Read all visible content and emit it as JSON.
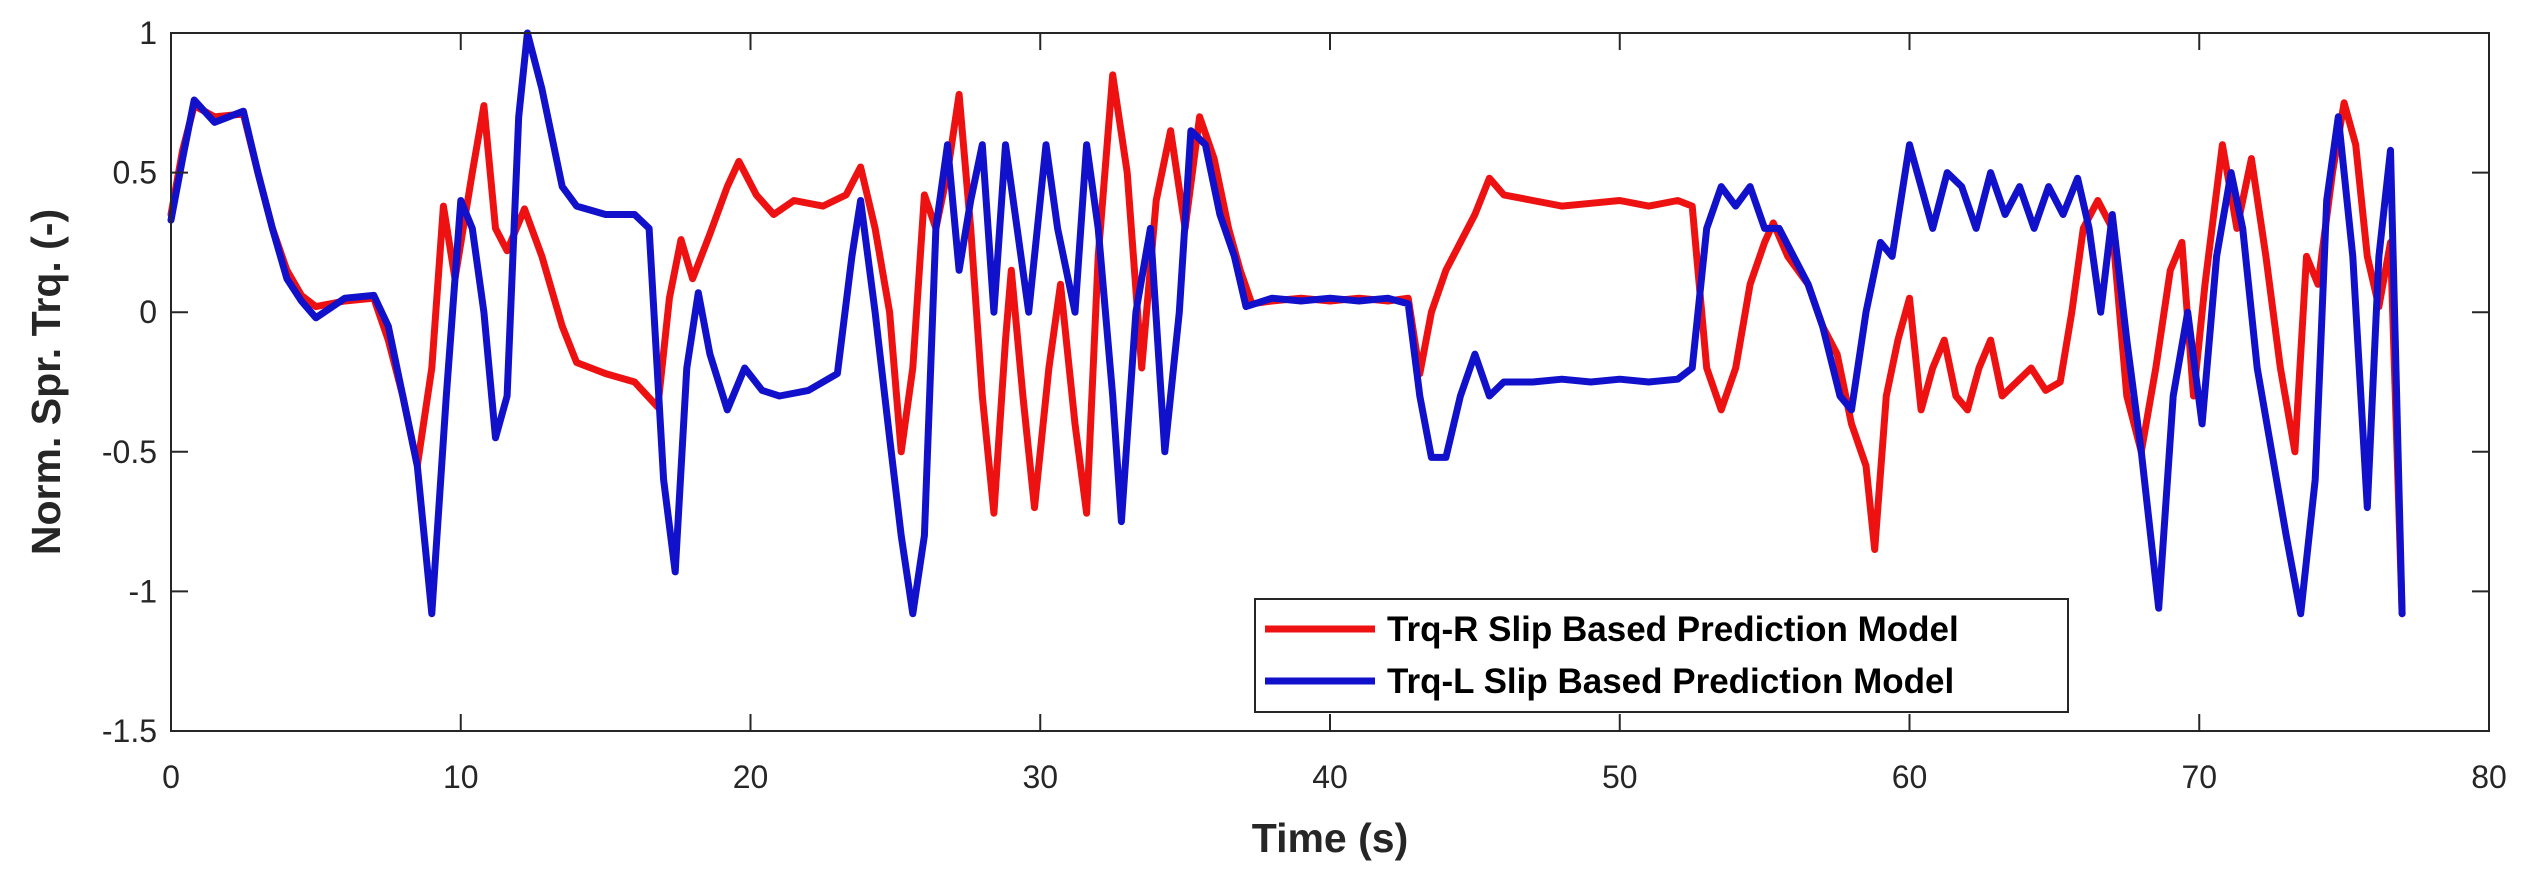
{
  "chart_data": {
    "type": "line",
    "title": "",
    "xlabel": "Time (s)",
    "ylabel": "Norm. Spr. Trq. (-)",
    "xlim": [
      0,
      80
    ],
    "ylim": [
      -1.5,
      1
    ],
    "xticks": [
      0,
      10,
      20,
      30,
      40,
      50,
      60,
      70,
      80
    ],
    "yticks": [
      -1.5,
      -1,
      -0.5,
      0,
      0.5,
      1
    ],
    "xtick_labels": [
      "0",
      "10",
      "20",
      "30",
      "40",
      "50",
      "60",
      "70",
      "80"
    ],
    "ytick_labels": [
      "-1.5",
      "-1",
      "-0.5",
      "0",
      "0.5",
      "1"
    ],
    "grid": false,
    "legend_position": "bottom-center-right",
    "series": [
      {
        "name": "Trq-R Slip Based Prediction Model",
        "color": "#ee1111",
        "points": [
          [
            0,
            0.35
          ],
          [
            0.4,
            0.58
          ],
          [
            0.8,
            0.74
          ],
          [
            1.5,
            0.7
          ],
          [
            2.5,
            0.71
          ],
          [
            3,
            0.5
          ],
          [
            3.5,
            0.3
          ],
          [
            4,
            0.15
          ],
          [
            4.5,
            0.06
          ],
          [
            5,
            0.02
          ],
          [
            6,
            0.04
          ],
          [
            7,
            0.05
          ],
          [
            7.5,
            -0.1
          ],
          [
            8,
            -0.3
          ],
          [
            8.5,
            -0.55
          ],
          [
            9,
            -0.2
          ],
          [
            9.4,
            0.38
          ],
          [
            9.8,
            0.12
          ],
          [
            10.4,
            0.5
          ],
          [
            10.8,
            0.74
          ],
          [
            11.2,
            0.3
          ],
          [
            11.6,
            0.22
          ],
          [
            12.2,
            0.37
          ],
          [
            12.8,
            0.2
          ],
          [
            13.5,
            -0.05
          ],
          [
            14,
            -0.18
          ],
          [
            15,
            -0.22
          ],
          [
            16,
            -0.25
          ],
          [
            16.8,
            -0.34
          ],
          [
            17.2,
            0.05
          ],
          [
            17.6,
            0.26
          ],
          [
            18,
            0.12
          ],
          [
            18.6,
            0.28
          ],
          [
            19.2,
            0.45
          ],
          [
            19.6,
            0.54
          ],
          [
            20.2,
            0.42
          ],
          [
            20.8,
            0.35
          ],
          [
            21.5,
            0.4
          ],
          [
            22.5,
            0.38
          ],
          [
            23.3,
            0.42
          ],
          [
            23.8,
            0.52
          ],
          [
            24.3,
            0.3
          ],
          [
            24.8,
            0.0
          ],
          [
            25.2,
            -0.5
          ],
          [
            25.6,
            -0.2
          ],
          [
            26,
            0.42
          ],
          [
            26.4,
            0.3
          ],
          [
            26.8,
            0.5
          ],
          [
            27.2,
            0.78
          ],
          [
            27.6,
            0.3
          ],
          [
            28,
            -0.3
          ],
          [
            28.4,
            -0.72
          ],
          [
            28.8,
            -0.1
          ],
          [
            29,
            0.15
          ],
          [
            29.4,
            -0.3
          ],
          [
            29.8,
            -0.7
          ],
          [
            30.3,
            -0.2
          ],
          [
            30.7,
            0.1
          ],
          [
            31.2,
            -0.4
          ],
          [
            31.6,
            -0.72
          ],
          [
            32,
            0.2
          ],
          [
            32.5,
            0.85
          ],
          [
            33,
            0.5
          ],
          [
            33.5,
            -0.2
          ],
          [
            34,
            0.4
          ],
          [
            34.5,
            0.65
          ],
          [
            35,
            0.3
          ],
          [
            35.5,
            0.7
          ],
          [
            36,
            0.55
          ],
          [
            36.5,
            0.3
          ],
          [
            36.9,
            0.15
          ],
          [
            37.3,
            0.03
          ],
          [
            38,
            0.04
          ],
          [
            39,
            0.05
          ],
          [
            40,
            0.04
          ],
          [
            41,
            0.05
          ],
          [
            42,
            0.04
          ],
          [
            42.7,
            0.05
          ],
          [
            43.1,
            -0.22
          ],
          [
            43.5,
            0.0
          ],
          [
            44,
            0.15
          ],
          [
            44.5,
            0.25
          ],
          [
            45,
            0.35
          ],
          [
            45.5,
            0.48
          ],
          [
            46,
            0.42
          ],
          [
            47,
            0.4
          ],
          [
            48,
            0.38
          ],
          [
            49,
            0.39
          ],
          [
            50,
            0.4
          ],
          [
            51,
            0.38
          ],
          [
            52,
            0.4
          ],
          [
            52.5,
            0.38
          ],
          [
            53,
            -0.2
          ],
          [
            53.5,
            -0.35
          ],
          [
            54,
            -0.2
          ],
          [
            54.5,
            0.1
          ],
          [
            55,
            0.25
          ],
          [
            55.3,
            0.32
          ],
          [
            55.8,
            0.2
          ],
          [
            56.5,
            0.1
          ],
          [
            57,
            -0.05
          ],
          [
            57.5,
            -0.15
          ],
          [
            58,
            -0.4
          ],
          [
            58.5,
            -0.55
          ],
          [
            58.8,
            -0.85
          ],
          [
            59.2,
            -0.3
          ],
          [
            59.6,
            -0.1
          ],
          [
            60,
            0.05
          ],
          [
            60.4,
            -0.35
          ],
          [
            60.8,
            -0.2
          ],
          [
            61.2,
            -0.1
          ],
          [
            61.6,
            -0.3
          ],
          [
            62,
            -0.35
          ],
          [
            62.4,
            -0.2
          ],
          [
            62.8,
            -0.1
          ],
          [
            63.2,
            -0.3
          ],
          [
            63.7,
            -0.25
          ],
          [
            64.2,
            -0.2
          ],
          [
            64.7,
            -0.28
          ],
          [
            65.2,
            -0.25
          ],
          [
            65.6,
            0.0
          ],
          [
            66,
            0.3
          ],
          [
            66.5,
            0.4
          ],
          [
            67,
            0.3
          ],
          [
            67.5,
            -0.3
          ],
          [
            68,
            -0.5
          ],
          [
            68.5,
            -0.2
          ],
          [
            69,
            0.15
          ],
          [
            69.4,
            0.25
          ],
          [
            69.8,
            -0.3
          ],
          [
            70.2,
            0.1
          ],
          [
            70.8,
            0.6
          ],
          [
            71.3,
            0.3
          ],
          [
            71.8,
            0.55
          ],
          [
            72.3,
            0.2
          ],
          [
            72.8,
            -0.2
          ],
          [
            73.3,
            -0.5
          ],
          [
            73.7,
            0.2
          ],
          [
            74.1,
            0.1
          ],
          [
            74.6,
            0.5
          ],
          [
            75,
            0.75
          ],
          [
            75.4,
            0.6
          ],
          [
            75.8,
            0.2
          ],
          [
            76.2,
            0.02
          ],
          [
            76.6,
            0.25
          ],
          [
            77,
            -1.08
          ]
        ]
      },
      {
        "name": "Trq-L Slip Based Prediction Model",
        "color": "#1111cc",
        "points": [
          [
            0,
            0.33
          ],
          [
            0.4,
            0.55
          ],
          [
            0.8,
            0.76
          ],
          [
            1.5,
            0.68
          ],
          [
            2.5,
            0.72
          ],
          [
            3,
            0.5
          ],
          [
            3.5,
            0.3
          ],
          [
            4,
            0.12
          ],
          [
            4.5,
            0.04
          ],
          [
            5,
            -0.02
          ],
          [
            6,
            0.05
          ],
          [
            7,
            0.06
          ],
          [
            7.5,
            -0.05
          ],
          [
            8,
            -0.3
          ],
          [
            8.5,
            -0.55
          ],
          [
            9,
            -1.08
          ],
          [
            9.5,
            -0.3
          ],
          [
            10,
            0.4
          ],
          [
            10.4,
            0.3
          ],
          [
            10.8,
            0.0
          ],
          [
            11.2,
            -0.45
          ],
          [
            11.6,
            -0.3
          ],
          [
            12.0,
            0.7
          ],
          [
            12.3,
            1.0
          ],
          [
            12.8,
            0.8
          ],
          [
            13.5,
            0.45
          ],
          [
            14,
            0.38
          ],
          [
            15,
            0.35
          ],
          [
            16,
            0.35
          ],
          [
            16.5,
            0.3
          ],
          [
            17,
            -0.6
          ],
          [
            17.4,
            -0.93
          ],
          [
            17.8,
            -0.2
          ],
          [
            18.2,
            0.07
          ],
          [
            18.6,
            -0.15
          ],
          [
            19.2,
            -0.35
          ],
          [
            19.8,
            -0.2
          ],
          [
            20.4,
            -0.28
          ],
          [
            21,
            -0.3
          ],
          [
            22,
            -0.28
          ],
          [
            23,
            -0.22
          ],
          [
            23.5,
            0.2
          ],
          [
            23.8,
            0.4
          ],
          [
            24.3,
            0.0
          ],
          [
            24.8,
            -0.45
          ],
          [
            25.2,
            -0.8
          ],
          [
            25.6,
            -1.08
          ],
          [
            26,
            -0.8
          ],
          [
            26.4,
            0.3
          ],
          [
            26.8,
            0.6
          ],
          [
            27.2,
            0.15
          ],
          [
            27.6,
            0.4
          ],
          [
            28,
            0.6
          ],
          [
            28.4,
            0.0
          ],
          [
            28.8,
            0.6
          ],
          [
            29.2,
            0.3
          ],
          [
            29.6,
            0.0
          ],
          [
            30.2,
            0.6
          ],
          [
            30.6,
            0.3
          ],
          [
            31.2,
            0.0
          ],
          [
            31.6,
            0.6
          ],
          [
            32,
            0.3
          ],
          [
            32.5,
            -0.3
          ],
          [
            32.8,
            -0.75
          ],
          [
            33.3,
            0.0
          ],
          [
            33.8,
            0.3
          ],
          [
            34.3,
            -0.5
          ],
          [
            34.8,
            0.0
          ],
          [
            35.2,
            0.65
          ],
          [
            35.7,
            0.6
          ],
          [
            36.2,
            0.35
          ],
          [
            36.7,
            0.2
          ],
          [
            37.1,
            0.02
          ],
          [
            38,
            0.05
          ],
          [
            39,
            0.04
          ],
          [
            40,
            0.05
          ],
          [
            41,
            0.04
          ],
          [
            42,
            0.05
          ],
          [
            42.7,
            0.03
          ],
          [
            43.1,
            -0.3
          ],
          [
            43.5,
            -0.52
          ],
          [
            44,
            -0.52
          ],
          [
            44.5,
            -0.3
          ],
          [
            45,
            -0.15
          ],
          [
            45.5,
            -0.3
          ],
          [
            46,
            -0.25
          ],
          [
            47,
            -0.25
          ],
          [
            48,
            -0.24
          ],
          [
            49,
            -0.25
          ],
          [
            50,
            -0.24
          ],
          [
            51,
            -0.25
          ],
          [
            52,
            -0.24
          ],
          [
            52.5,
            -0.2
          ],
          [
            53,
            0.3
          ],
          [
            53.5,
            0.45
          ],
          [
            54,
            0.38
          ],
          [
            54.5,
            0.45
          ],
          [
            55,
            0.3
          ],
          [
            55.5,
            0.3
          ],
          [
            56,
            0.2
          ],
          [
            56.5,
            0.1
          ],
          [
            57,
            -0.05
          ],
          [
            57.6,
            -0.3
          ],
          [
            58,
            -0.35
          ],
          [
            58.5,
            0.0
          ],
          [
            59,
            0.25
          ],
          [
            59.4,
            0.2
          ],
          [
            60,
            0.6
          ],
          [
            60.4,
            0.45
          ],
          [
            60.8,
            0.3
          ],
          [
            61.3,
            0.5
          ],
          [
            61.8,
            0.45
          ],
          [
            62.3,
            0.3
          ],
          [
            62.8,
            0.5
          ],
          [
            63.3,
            0.35
          ],
          [
            63.8,
            0.45
          ],
          [
            64.3,
            0.3
          ],
          [
            64.8,
            0.45
          ],
          [
            65.3,
            0.35
          ],
          [
            65.8,
            0.48
          ],
          [
            66.2,
            0.3
          ],
          [
            66.6,
            0.0
          ],
          [
            67,
            0.35
          ],
          [
            67.5,
            -0.1
          ],
          [
            68,
            -0.5
          ],
          [
            68.6,
            -1.06
          ],
          [
            69.1,
            -0.3
          ],
          [
            69.6,
            0.0
          ],
          [
            70.1,
            -0.4
          ],
          [
            70.6,
            0.2
          ],
          [
            71.1,
            0.5
          ],
          [
            71.5,
            0.3
          ],
          [
            72,
            -0.2
          ],
          [
            72.5,
            -0.5
          ],
          [
            73,
            -0.8
          ],
          [
            73.5,
            -1.08
          ],
          [
            74,
            -0.6
          ],
          [
            74.4,
            0.4
          ],
          [
            74.8,
            0.7
          ],
          [
            75.3,
            0.2
          ],
          [
            75.8,
            -0.7
          ],
          [
            76.2,
            0.2
          ],
          [
            76.6,
            0.58
          ],
          [
            77,
            -1.08
          ]
        ]
      }
    ]
  }
}
